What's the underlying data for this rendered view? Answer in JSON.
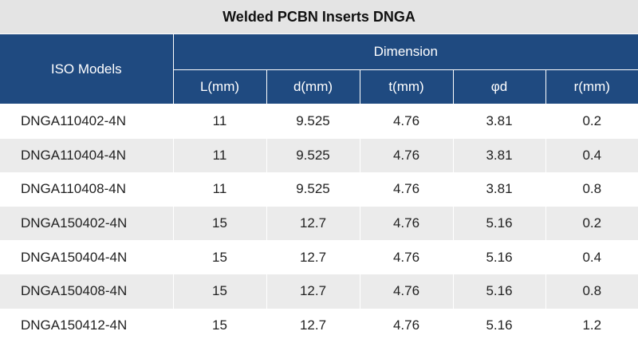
{
  "title": "Welded PCBN Inserts DNGA",
  "header": {
    "model_label": "ISO Models",
    "group_label": "Dimension",
    "columns": [
      "L(mm)",
      "d(mm)",
      "t(mm)",
      "φd",
      "r(mm)"
    ]
  },
  "rows": [
    [
      "DNGA110402-4N",
      "11",
      "9.525",
      "4.76",
      "3.81",
      "0.2"
    ],
    [
      "DNGA110404-4N",
      "11",
      "9.525",
      "4.76",
      "3.81",
      "0.4"
    ],
    [
      "DNGA110408-4N",
      "11",
      "9.525",
      "4.76",
      "3.81",
      "0.8"
    ],
    [
      "DNGA150402-4N",
      "15",
      "12.7",
      "4.76",
      "5.16",
      "0.2"
    ],
    [
      "DNGA150404-4N",
      "15",
      "12.7",
      "4.76",
      "5.16",
      "0.4"
    ],
    [
      "DNGA150408-4N",
      "15",
      "12.7",
      "4.76",
      "5.16",
      "0.8"
    ],
    [
      "DNGA150412-4N",
      "15",
      "12.7",
      "4.76",
      "5.16",
      "1.2"
    ]
  ]
}
